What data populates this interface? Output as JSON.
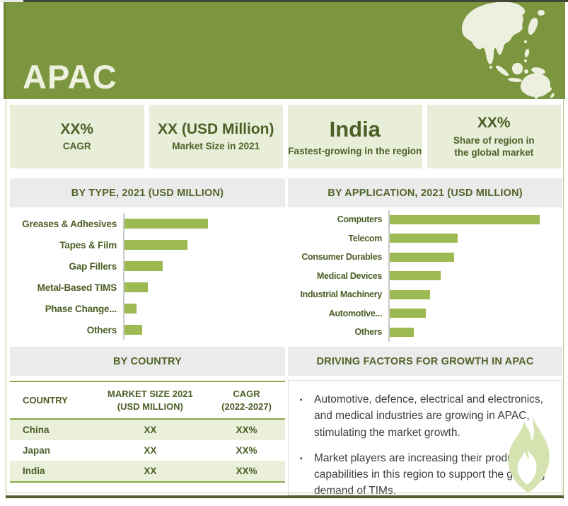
{
  "header": {
    "title": "APAC"
  },
  "stats": [
    {
      "value": "XX%",
      "label": "CAGR"
    },
    {
      "value": "XX (USD Million)",
      "label": "Market Size in 2021"
    },
    {
      "value": "India",
      "label": "Fastest-growing in the region"
    },
    {
      "value": "XX%",
      "label": "Share of region in\nthe global market"
    }
  ],
  "chart_data": [
    {
      "type": "bar",
      "orientation": "horizontal",
      "title": "BY TYPE, 2021 (USD MILLION)",
      "categories": [
        "Greases & Adhesives",
        "Tapes & Film",
        "Gap Fillers",
        "Metal-Based TIMS",
        "Phase Change...",
        "Others"
      ],
      "values": [
        100,
        75,
        46,
        28,
        14,
        21
      ],
      "note": "Numeric values masked as XX in source; values are relative bar lengths (longest = 100)",
      "xlabel": "",
      "ylabel": "",
      "axis_tick_labels_shown": false,
      "grid": false,
      "legend": "none",
      "bar_color": "#9cb952"
    },
    {
      "type": "bar",
      "orientation": "horizontal",
      "title": "BY APPLICATION, 2021 (USD MILLION)",
      "categories": [
        "Computers",
        "Telecom",
        "Consumer Durables",
        "Medical Devices",
        "Industrial Machinery",
        "Automotive...",
        "Others"
      ],
      "values": [
        100,
        45,
        43,
        34,
        27,
        24,
        16
      ],
      "note": "Numeric values masked as XX in source; values are relative bar lengths (longest = 100)",
      "xlabel": "",
      "ylabel": "",
      "axis_tick_labels_shown": false,
      "grid": false,
      "legend": "none",
      "bar_color": "#9cb952"
    }
  ],
  "country_table": {
    "section_title": "BY COUNTRY",
    "columns": [
      "COUNTRY",
      "MARKET SIZE 2021\n(USD MILLION)",
      "CAGR\n(2022-2027)"
    ],
    "rows": [
      [
        "China",
        "XX",
        "XX%"
      ],
      [
        "Japan",
        "XX",
        "XX%"
      ],
      [
        "India",
        "XX",
        "XX%"
      ]
    ]
  },
  "driving_factors": {
    "section_title": "DRIVING FACTORS FOR GROWTH IN APAC",
    "bullets": [
      "Automotive, defence, electrical and electronics, and medical industries are growing in APAC, stimulating the market growth.",
      "Market players are increasing their production capabilities in this region to support the growing demand of TIMs."
    ]
  },
  "icons": {
    "map": "asia-pacific-map",
    "flame": "flame-watermark"
  },
  "colors": {
    "header_green": "#7c963f",
    "dark_olive_text": "#4b5f26",
    "pale_green_box": "#e9eed9",
    "section_header_bg": "#ebebeb",
    "bar_green": "#9cb952",
    "table_border_green": "#8aa84b",
    "row_stripe_green": "#eaf0da",
    "flame_watermark": "#d5e3b0"
  }
}
